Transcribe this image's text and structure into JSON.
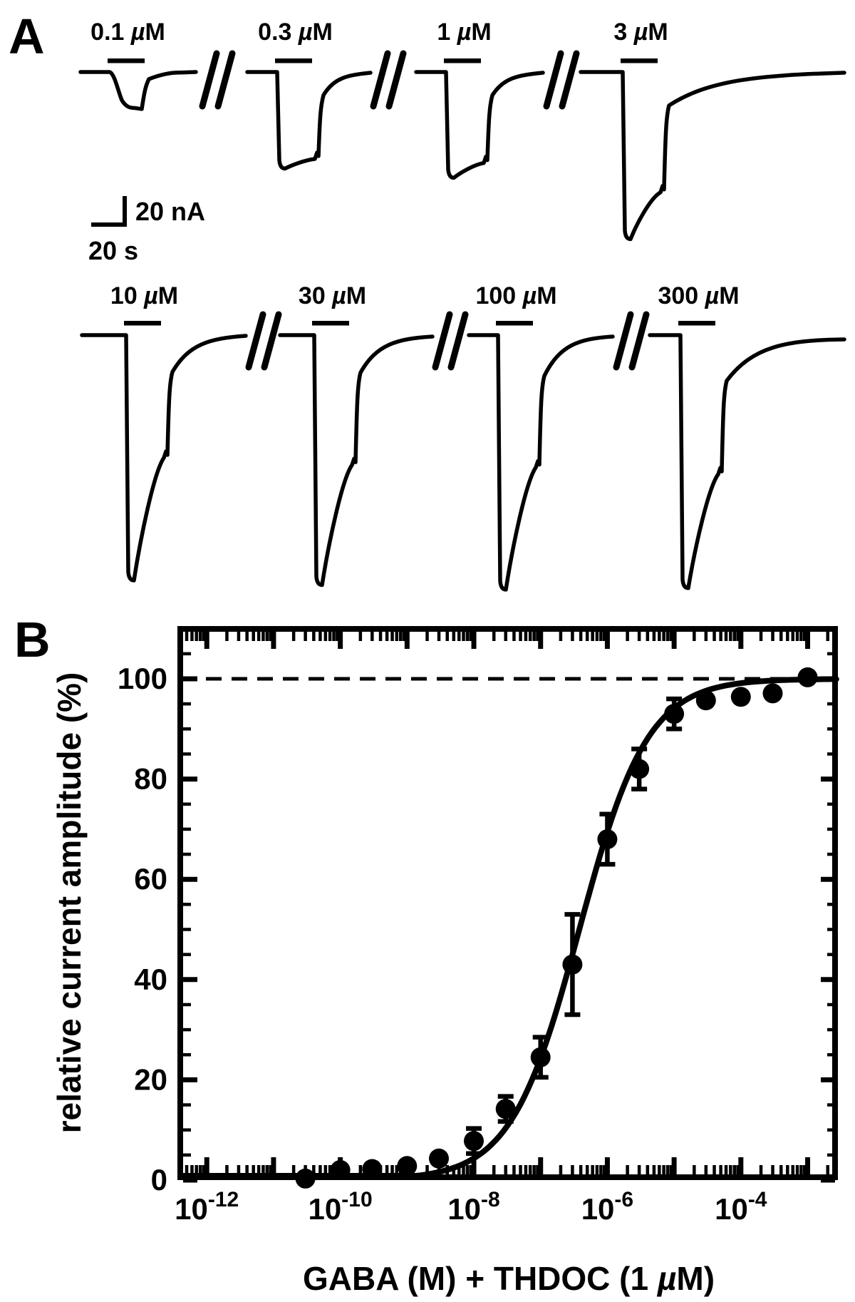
{
  "figure": {
    "panelA_letter": "A",
    "panelB_letter": "B",
    "background_color": "#ffffff",
    "ink_color": "#000000"
  },
  "panelA": {
    "scale_bar": {
      "current": "20 nA",
      "time": "20 s"
    }
  },
  "chart_data": [
    {
      "type": "line",
      "panel": "A",
      "title": "GABA-evoked membrane current traces",
      "scale_bar": {
        "current_nA": 20,
        "time_s": 20
      },
      "traces": [
        {
          "label": "0.1 µM",
          "peak_nA": 23,
          "desensitization_frac": 1.05,
          "recovery_frac": 0.2,
          "kinetics": "slow",
          "end_offset": 1
        },
        {
          "label": "0.3 µM",
          "peak_nA": 63,
          "desensitization_frac": 0.9,
          "recovery_frac": 0.24,
          "kinetics": "fast",
          "end_offset": 1
        },
        {
          "label": "1 µM",
          "peak_nA": 69,
          "desensitization_frac": 0.86,
          "recovery_frac": 0.22,
          "kinetics": "fast",
          "end_offset": 1
        },
        {
          "label": "3 µM",
          "peak_nA": 109,
          "desensitization_frac": 0.72,
          "recovery_frac": 0.2,
          "kinetics": "fast",
          "end_offset": 1
        },
        {
          "label": "10 µM",
          "peak_nA": 160,
          "desensitization_frac": 0.5,
          "recovery_frac": 0.15,
          "kinetics": "fast",
          "end_offset": 1
        },
        {
          "label": "30 µM",
          "peak_nA": 163,
          "desensitization_frac": 0.52,
          "recovery_frac": 0.15,
          "kinetics": "fast",
          "end_offset": 2
        },
        {
          "label": "100 µM",
          "peak_nA": 166,
          "desensitization_frac": 0.52,
          "recovery_frac": 0.16,
          "kinetics": "fast",
          "end_offset": 2
        },
        {
          "label": "300 µM",
          "peak_nA": 165,
          "desensitization_frac": 0.55,
          "recovery_frac": 0.18,
          "kinetics": "fast",
          "end_offset": 6
        }
      ]
    },
    {
      "type": "scatter",
      "panel": "B",
      "xlabel": "GABA (M) + THDOC (1 µM)",
      "ylabel": "relative current amplitude (%)",
      "x_scale": "log",
      "xlim_log10": [
        -12.44,
        -2.5
      ],
      "ylim": [
        0,
        110.5
      ],
      "x_tick_exponents": [
        -12,
        -10,
        -8,
        -6,
        -4
      ],
      "y_ticks": [
        0,
        20,
        40,
        60,
        80,
        100
      ],
      "y_minor_step": 5,
      "reference_line_y": 100,
      "grid": false,
      "legend": "none",
      "points": [
        {
          "x": 3e-11,
          "y": 0.3,
          "err": 0
        },
        {
          "x": 1e-10,
          "y": 2.0,
          "err": 0
        },
        {
          "x": 3e-10,
          "y": 2.2,
          "err": 0
        },
        {
          "x": 1e-09,
          "y": 2.8,
          "err": 0
        },
        {
          "x": 3e-09,
          "y": 4.3,
          "err": 0
        },
        {
          "x": 1e-08,
          "y": 7.8,
          "err": 2.5
        },
        {
          "x": 3e-08,
          "y": 14.2,
          "err": 2.5
        },
        {
          "x": 1e-07,
          "y": 24.5,
          "err": 4
        },
        {
          "x": 3e-07,
          "y": 43,
          "err": 10
        },
        {
          "x": 1e-06,
          "y": 68,
          "err": 5
        },
        {
          "x": 3e-06,
          "y": 82,
          "err": 4
        },
        {
          "x": 1e-05,
          "y": 93,
          "err": 3
        },
        {
          "x": 3e-05,
          "y": 95.7,
          "err": 0
        },
        {
          "x": 0.0001,
          "y": 96.4,
          "err": 0
        },
        {
          "x": 0.0003,
          "y": 97.1,
          "err": 0
        },
        {
          "x": 0.001,
          "y": 100.3,
          "err": 0
        }
      ],
      "fit_curve": {
        "model": "Hill",
        "ec50_M": 3.8e-07,
        "log10_ec50": -6.42,
        "hill_coefficient": 0.85,
        "max": 100
      }
    }
  ]
}
